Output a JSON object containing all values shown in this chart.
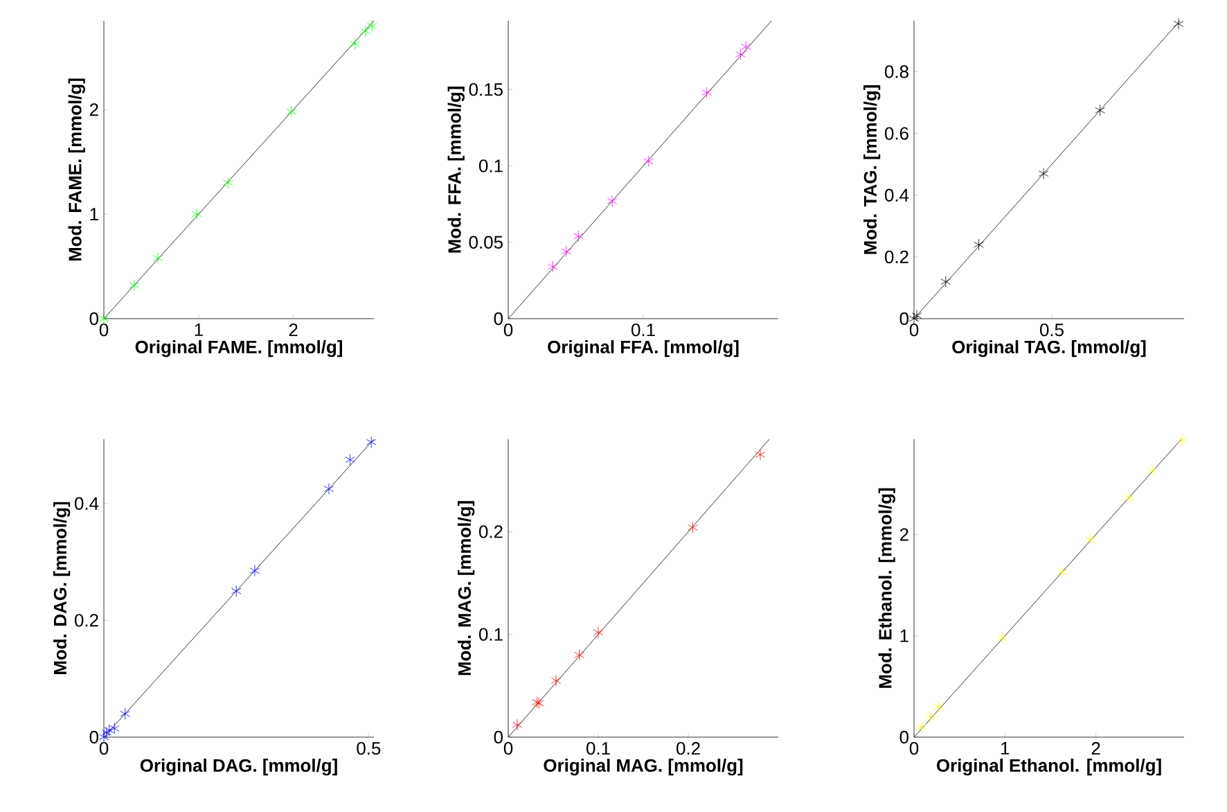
{
  "chart_data": [
    {
      "type": "scatter",
      "xlabel": "Original FAME. [mmol/g]",
      "ylabel": "Mod. FAME. [mmol/g]",
      "xlim": [
        0,
        2.85
      ],
      "ylim": [
        0,
        2.85
      ],
      "xticks": [
        0,
        1,
        2
      ],
      "yticks": [
        0,
        1,
        2
      ],
      "marker": "cross",
      "series": [
        {
          "color": "#00ff00",
          "x": [
            0,
            0.32,
            0.57,
            0.98,
            1.31,
            1.98,
            2.65,
            2.76,
            2.83
          ],
          "values": [
            0,
            0.32,
            0.58,
            1.0,
            1.3,
            1.98,
            2.63,
            2.75,
            2.8
          ]
        },
        {
          "type": "line",
          "marker": "none",
          "color": "#000000",
          "x": [
            0,
            2.85
          ],
          "values": [
            0,
            2.85
          ]
        }
      ]
    },
    {
      "type": "scatter",
      "xlabel": "Original FFA. [mmol/g]",
      "ylabel": "Mod. FFA. [mmol/g]",
      "xlim": [
        0,
        0.2
      ],
      "ylim": [
        0,
        0.195
      ],
      "xticks": [
        0,
        0.1
      ],
      "yticks": [
        0,
        0.05,
        0.1,
        0.15
      ],
      "marker": "cross",
      "series": [
        {
          "color": "#ff00ff",
          "x": [
            0.033,
            0.043,
            0.052,
            0.077,
            0.104,
            0.147,
            0.172,
            0.176
          ],
          "values": [
            0.034,
            0.044,
            0.054,
            0.077,
            0.103,
            0.148,
            0.173,
            0.178
          ]
        },
        {
          "type": "line",
          "marker": "none",
          "color": "#000000",
          "x": [
            0,
            0.195
          ],
          "values": [
            0,
            0.195
          ]
        }
      ]
    },
    {
      "type": "scatter",
      "xlabel": "Original TAG. [mmol/g]",
      "ylabel": "Mod. TAG. [mmol/g]",
      "xlim": [
        0,
        0.98
      ],
      "ylim": [
        0,
        0.965
      ],
      "xticks": [
        0,
        0.5
      ],
      "yticks": [
        0,
        0.2,
        0.4,
        0.6,
        0.8
      ],
      "marker": "cross",
      "series": [
        {
          "color": "#000000",
          "x": [
            0,
            0.01,
            0.115,
            0.235,
            0.47,
            0.675,
            0.96
          ],
          "values": [
            0,
            0.01,
            0.12,
            0.24,
            0.47,
            0.675,
            0.955
          ]
        },
        {
          "type": "line",
          "marker": "none",
          "color": "#000000",
          "x": [
            0,
            0.965
          ],
          "values": [
            0,
            0.965
          ]
        }
      ]
    },
    {
      "type": "scatter",
      "xlabel": "Original DAG. [mmol/g]",
      "ylabel": "Mod. DAG. [mmol/g]",
      "xlim": [
        0,
        0.51
      ],
      "ylim": [
        0,
        0.51
      ],
      "xticks": [
        0,
        0.5
      ],
      "yticks": [
        0,
        0.2,
        0.4
      ],
      "marker": "cross",
      "series": [
        {
          "color": "#0000ff",
          "x": [
            0,
            0.005,
            0.01,
            0.02,
            0.04,
            0.25,
            0.285,
            0.425,
            0.465,
            0.505
          ],
          "values": [
            0,
            0.008,
            0.012,
            0.015,
            0.04,
            0.25,
            0.285,
            0.425,
            0.475,
            0.505
          ]
        },
        {
          "type": "line",
          "marker": "none",
          "color": "#000000",
          "x": [
            0,
            0.51
          ],
          "values": [
            0,
            0.51
          ]
        }
      ]
    },
    {
      "type": "scatter",
      "xlabel": "Original MAG. [mmol/g]",
      "ylabel": "Mod. MAG. [mmol/g]",
      "xlim": [
        0,
        0.3
      ],
      "ylim": [
        0,
        0.29
      ],
      "xticks": [
        0,
        0.1,
        0.2
      ],
      "yticks": [
        0,
        0.1,
        0.2
      ],
      "marker": "cross",
      "series": [
        {
          "color": "#ff0000",
          "x": [
            0.01,
            0.032,
            0.034,
            0.053,
            0.079,
            0.1,
            0.205,
            0.28
          ],
          "values": [
            0.012,
            0.034,
            0.033,
            0.055,
            0.08,
            0.102,
            0.204,
            0.275
          ]
        },
        {
          "type": "line",
          "marker": "none",
          "color": "#000000",
          "x": [
            0,
            0.29
          ],
          "values": [
            0,
            0.29
          ]
        }
      ]
    },
    {
      "type": "scatter",
      "xlabel": "Original Ethanol. [mmol/g]",
      "ylabel": "Mod. Ethanol. [mmol/g]",
      "xlim": [
        0,
        2.97
      ],
      "ylim": [
        0,
        2.94
      ],
      "xticks": [
        0,
        1,
        2
      ],
      "yticks": [
        0,
        1,
        2
      ],
      "marker": "cross",
      "series": [
        {
          "color": "#ffff00",
          "x": [
            0.08,
            0.18,
            0.27,
            0.97,
            1.63,
            1.94,
            2.37,
            2.62,
            2.95
          ],
          "values": [
            0.1,
            0.2,
            0.3,
            0.98,
            1.63,
            1.95,
            2.36,
            2.63,
            2.93
          ]
        },
        {
          "type": "line",
          "marker": "none",
          "color": "#000000",
          "x": [
            0,
            2.94
          ],
          "values": [
            0,
            2.94
          ]
        }
      ]
    }
  ]
}
